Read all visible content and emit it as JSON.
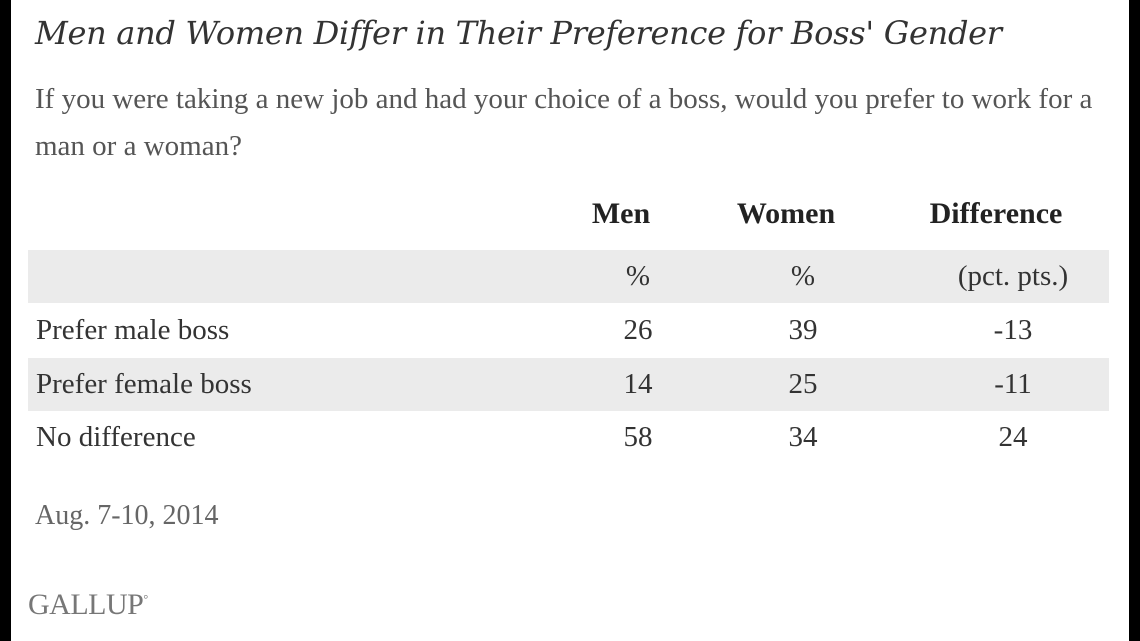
{
  "chart_data": {
    "type": "table",
    "title": "Men and Women Differ in Their Preference for Boss' Gender",
    "subtitle": "If you were taking a new job and had your choice of a boss, would you prefer to work for a man or a woman?",
    "columns": [
      "Men",
      "Women",
      "Difference"
    ],
    "units": [
      "%",
      "%",
      "(pct. pts.)"
    ],
    "rows": [
      {
        "label": "Prefer male boss",
        "men": "26",
        "women": "39",
        "difference": "-13"
      },
      {
        "label": "Prefer female boss",
        "men": "14",
        "women": "25",
        "difference": "-11"
      },
      {
        "label": "No difference",
        "men": "58",
        "women": "34",
        "difference": "24"
      }
    ],
    "date": "Aug. 7-10, 2014",
    "source": "GALLUP"
  },
  "colors": {
    "band": "#ebebeb",
    "frame": "#000000"
  }
}
